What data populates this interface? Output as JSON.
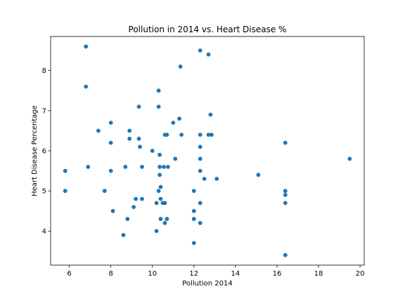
{
  "chart_data": {
    "type": "scatter",
    "title": "Pollution in 2014 vs. Heart Disease %",
    "xlabel": "Pollution 2014",
    "ylabel": "Heart Disease Percentage",
    "xlim": [
      5.1,
      20.2
    ],
    "ylim": [
      3.15,
      8.85
    ],
    "xticks": [
      6,
      8,
      10,
      12,
      14,
      16,
      18,
      20
    ],
    "yticks": [
      4,
      5,
      6,
      7,
      8
    ],
    "grid": false,
    "marker_color": "#1f77b4",
    "points": [
      {
        "x": 5.8,
        "y": 5.5
      },
      {
        "x": 5.8,
        "y": 5.0
      },
      {
        "x": 6.8,
        "y": 8.6
      },
      {
        "x": 6.8,
        "y": 7.6
      },
      {
        "x": 6.9,
        "y": 5.6
      },
      {
        "x": 7.4,
        "y": 6.5
      },
      {
        "x": 7.7,
        "y": 5.0
      },
      {
        "x": 8.0,
        "y": 6.7
      },
      {
        "x": 8.0,
        "y": 6.2
      },
      {
        "x": 8.0,
        "y": 5.5
      },
      {
        "x": 8.1,
        "y": 4.5
      },
      {
        "x": 8.6,
        "y": 3.9
      },
      {
        "x": 8.7,
        "y": 5.6
      },
      {
        "x": 8.8,
        "y": 4.3
      },
      {
        "x": 8.9,
        "y": 6.5
      },
      {
        "x": 8.9,
        "y": 6.3
      },
      {
        "x": 9.1,
        "y": 4.6
      },
      {
        "x": 9.2,
        "y": 4.8
      },
      {
        "x": 9.35,
        "y": 7.1
      },
      {
        "x": 9.35,
        "y": 6.3
      },
      {
        "x": 9.4,
        "y": 6.1
      },
      {
        "x": 9.5,
        "y": 5.6
      },
      {
        "x": 9.5,
        "y": 4.8
      },
      {
        "x": 10.0,
        "y": 6.0
      },
      {
        "x": 10.2,
        "y": 4.7
      },
      {
        "x": 10.2,
        "y": 4.0
      },
      {
        "x": 10.3,
        "y": 7.5
      },
      {
        "x": 10.3,
        "y": 7.1
      },
      {
        "x": 10.3,
        "y": 5.0
      },
      {
        "x": 10.35,
        "y": 5.9
      },
      {
        "x": 10.35,
        "y": 5.6
      },
      {
        "x": 10.35,
        "y": 5.4
      },
      {
        "x": 10.4,
        "y": 5.1
      },
      {
        "x": 10.4,
        "y": 4.8
      },
      {
        "x": 10.4,
        "y": 4.3
      },
      {
        "x": 10.5,
        "y": 4.7
      },
      {
        "x": 10.55,
        "y": 5.6
      },
      {
        "x": 10.6,
        "y": 6.4
      },
      {
        "x": 10.6,
        "y": 4.7
      },
      {
        "x": 10.6,
        "y": 4.2
      },
      {
        "x": 10.7,
        "y": 6.4
      },
      {
        "x": 10.7,
        "y": 4.3
      },
      {
        "x": 10.75,
        "y": 5.6
      },
      {
        "x": 11.0,
        "y": 6.7
      },
      {
        "x": 11.1,
        "y": 5.8
      },
      {
        "x": 11.3,
        "y": 6.8
      },
      {
        "x": 11.35,
        "y": 8.1
      },
      {
        "x": 11.4,
        "y": 6.4
      },
      {
        "x": 12.0,
        "y": 5.0
      },
      {
        "x": 12.0,
        "y": 4.5
      },
      {
        "x": 12.0,
        "y": 4.3
      },
      {
        "x": 12.0,
        "y": 3.7
      },
      {
        "x": 12.3,
        "y": 8.5
      },
      {
        "x": 12.3,
        "y": 6.4
      },
      {
        "x": 12.3,
        "y": 6.1
      },
      {
        "x": 12.3,
        "y": 5.8
      },
      {
        "x": 12.3,
        "y": 5.5
      },
      {
        "x": 12.3,
        "y": 4.7
      },
      {
        "x": 12.3,
        "y": 4.2
      },
      {
        "x": 12.5,
        "y": 5.3
      },
      {
        "x": 12.7,
        "y": 8.4
      },
      {
        "x": 12.7,
        "y": 6.4
      },
      {
        "x": 12.8,
        "y": 6.9
      },
      {
        "x": 12.85,
        "y": 6.4
      },
      {
        "x": 13.1,
        "y": 5.3
      },
      {
        "x": 15.1,
        "y": 5.4
      },
      {
        "x": 16.4,
        "y": 6.2
      },
      {
        "x": 16.4,
        "y": 5.0
      },
      {
        "x": 16.4,
        "y": 4.9
      },
      {
        "x": 16.4,
        "y": 4.7
      },
      {
        "x": 16.4,
        "y": 3.4
      },
      {
        "x": 19.5,
        "y": 5.8
      }
    ]
  }
}
